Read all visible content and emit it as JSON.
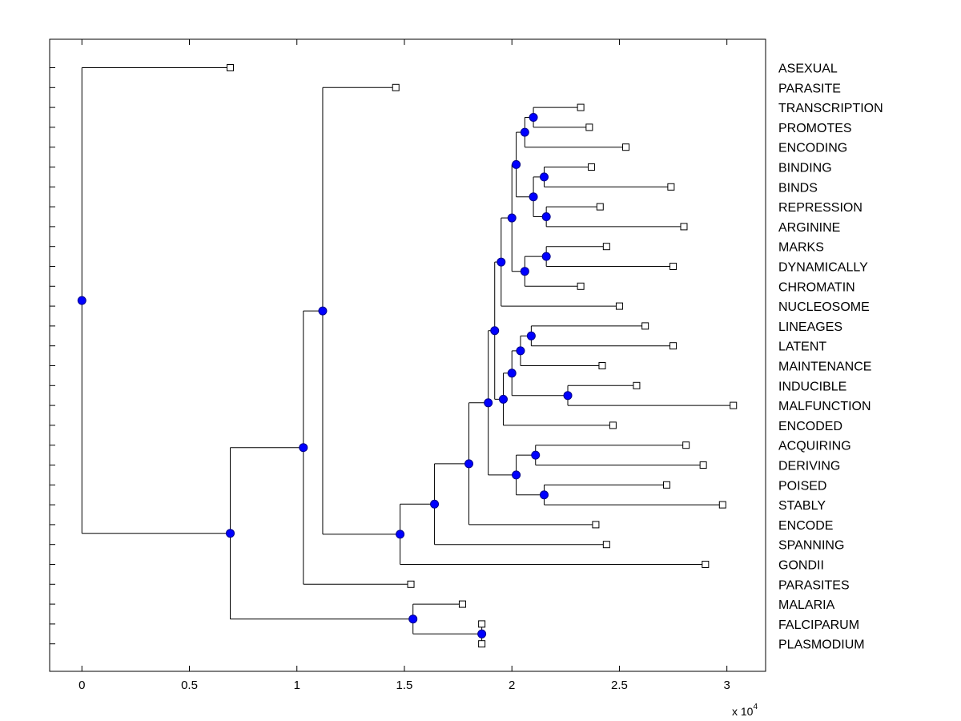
{
  "chart_data": {
    "type": "dendrogram",
    "title": "",
    "xlabel": "",
    "ylabel": "",
    "x_multiplier": {
      "base": "x 10",
      "exponent": "4"
    },
    "xlim": [
      -0.15,
      3.18
    ],
    "xticks": [
      {
        "value": 0,
        "label": "0"
      },
      {
        "value": 0.5,
        "label": "0.5"
      },
      {
        "value": 1,
        "label": "1"
      },
      {
        "value": 1.5,
        "label": "1.5"
      },
      {
        "value": 2,
        "label": "2"
      },
      {
        "value": 2.5,
        "label": "2.5"
      },
      {
        "value": 3,
        "label": "3"
      }
    ],
    "leaves": [
      {
        "label": "ASEXUAL",
        "x": 0.69
      },
      {
        "label": "PARASITE",
        "x": 1.46
      },
      {
        "label": "TRANSCRIPTION",
        "x": 2.32
      },
      {
        "label": "PROMOTES",
        "x": 2.36
      },
      {
        "label": "ENCODING",
        "x": 2.53
      },
      {
        "label": "BINDING",
        "x": 2.37
      },
      {
        "label": "BINDS",
        "x": 2.74
      },
      {
        "label": "REPRESSION",
        "x": 2.41
      },
      {
        "label": "ARGININE",
        "x": 2.8
      },
      {
        "label": "MARKS",
        "x": 2.44
      },
      {
        "label": "DYNAMICALLY",
        "x": 2.75
      },
      {
        "label": "CHROMATIN",
        "x": 2.32
      },
      {
        "label": "NUCLEOSOME",
        "x": 2.5
      },
      {
        "label": "LINEAGES",
        "x": 2.62
      },
      {
        "label": "LATENT",
        "x": 2.75
      },
      {
        "label": "MAINTENANCE",
        "x": 2.42
      },
      {
        "label": "INDUCIBLE",
        "x": 2.58
      },
      {
        "label": "MALFUNCTION",
        "x": 3.03
      },
      {
        "label": "ENCODED",
        "x": 2.47
      },
      {
        "label": "ACQUIRING",
        "x": 2.81
      },
      {
        "label": "DERIVING",
        "x": 2.89
      },
      {
        "label": "POISED",
        "x": 2.72
      },
      {
        "label": "STABLY",
        "x": 2.98
      },
      {
        "label": "ENCODE",
        "x": 2.39
      },
      {
        "label": "SPANNING",
        "x": 2.44
      },
      {
        "label": "GONDII",
        "x": 2.9
      },
      {
        "label": "PARASITES",
        "x": 1.53
      },
      {
        "label": "MALARIA",
        "x": 1.77
      },
      {
        "label": "FALCIPARUM",
        "x": 1.86
      },
      {
        "label": "PLASMODIUM",
        "x": 1.86
      }
    ],
    "nodes": [
      {
        "id": "n1",
        "x": 2.1,
        "children": [
          "L:TRANSCRIPTION",
          "L:PROMOTES"
        ]
      },
      {
        "id": "n2",
        "x": 2.06,
        "children": [
          "n1",
          "L:ENCODING"
        ]
      },
      {
        "id": "n3",
        "x": 2.15,
        "children": [
          "L:BINDING",
          "L:BINDS"
        ]
      },
      {
        "id": "n4",
        "x": 2.16,
        "children": [
          "L:REPRESSION",
          "L:ARGININE"
        ]
      },
      {
        "id": "n5",
        "x": 2.1,
        "children": [
          "n3",
          "n4"
        ]
      },
      {
        "id": "n6",
        "x": 2.02,
        "children": [
          "n2",
          "n5"
        ]
      },
      {
        "id": "n7",
        "x": 2.16,
        "children": [
          "L:MARKS",
          "L:DYNAMICALLY"
        ]
      },
      {
        "id": "n8",
        "x": 2.06,
        "children": [
          "n7",
          "L:CHROMATIN"
        ]
      },
      {
        "id": "n9",
        "x": 2.0,
        "children": [
          "n6",
          "n8"
        ]
      },
      {
        "id": "n10",
        "x": 1.95,
        "children": [
          "n9",
          "L:NUCLEOSOME"
        ]
      },
      {
        "id": "n11",
        "x": 2.09,
        "children": [
          "L:LINEAGES",
          "L:LATENT"
        ]
      },
      {
        "id": "n12",
        "x": 2.04,
        "children": [
          "n11",
          "L:MAINTENANCE"
        ]
      },
      {
        "id": "n13",
        "x": 2.26,
        "children": [
          "L:INDUCIBLE",
          "L:MALFUNCTION"
        ]
      },
      {
        "id": "n14",
        "x": 2.0,
        "children": [
          "n12",
          "n13"
        ]
      },
      {
        "id": "n15",
        "x": 1.96,
        "children": [
          "n14",
          "L:ENCODED"
        ]
      },
      {
        "id": "n16",
        "x": 1.92,
        "children": [
          "n10",
          "n15"
        ]
      },
      {
        "id": "n17",
        "x": 2.11,
        "children": [
          "L:ACQUIRING",
          "L:DERIVING"
        ]
      },
      {
        "id": "n18",
        "x": 2.15,
        "children": [
          "L:POISED",
          "L:STABLY"
        ]
      },
      {
        "id": "n19",
        "x": 2.02,
        "children": [
          "n17",
          "n18"
        ]
      },
      {
        "id": "n20",
        "x": 1.89,
        "children": [
          "n16",
          "n19"
        ]
      },
      {
        "id": "n21",
        "x": 1.8,
        "children": [
          "n20",
          "L:ENCODE"
        ]
      },
      {
        "id": "n22",
        "x": 1.64,
        "children": [
          "n21",
          "L:SPANNING"
        ]
      },
      {
        "id": "n23",
        "x": 1.48,
        "children": [
          "n22",
          "L:GONDII"
        ]
      },
      {
        "id": "n24",
        "x": 1.12,
        "children": [
          "L:PARASITE",
          "n23"
        ]
      },
      {
        "id": "n25",
        "x": 1.03,
        "children": [
          "n24",
          "L:PARASITES"
        ]
      },
      {
        "id": "n26",
        "x": 1.86,
        "children": [
          "L:FALCIPARUM",
          "L:PLASMODIUM"
        ]
      },
      {
        "id": "n27",
        "x": 1.54,
        "children": [
          "L:MALARIA",
          "n26"
        ]
      },
      {
        "id": "n28",
        "x": 0.69,
        "children": [
          "n25",
          "n27"
        ]
      },
      {
        "id": "n29",
        "x": 0.0,
        "children": [
          "L:ASEXUAL",
          "n28"
        ]
      }
    ],
    "colors": {
      "node_fill": "#0000ff",
      "line": "#000000",
      "leaf_marker_fill": "#ffffff"
    }
  }
}
